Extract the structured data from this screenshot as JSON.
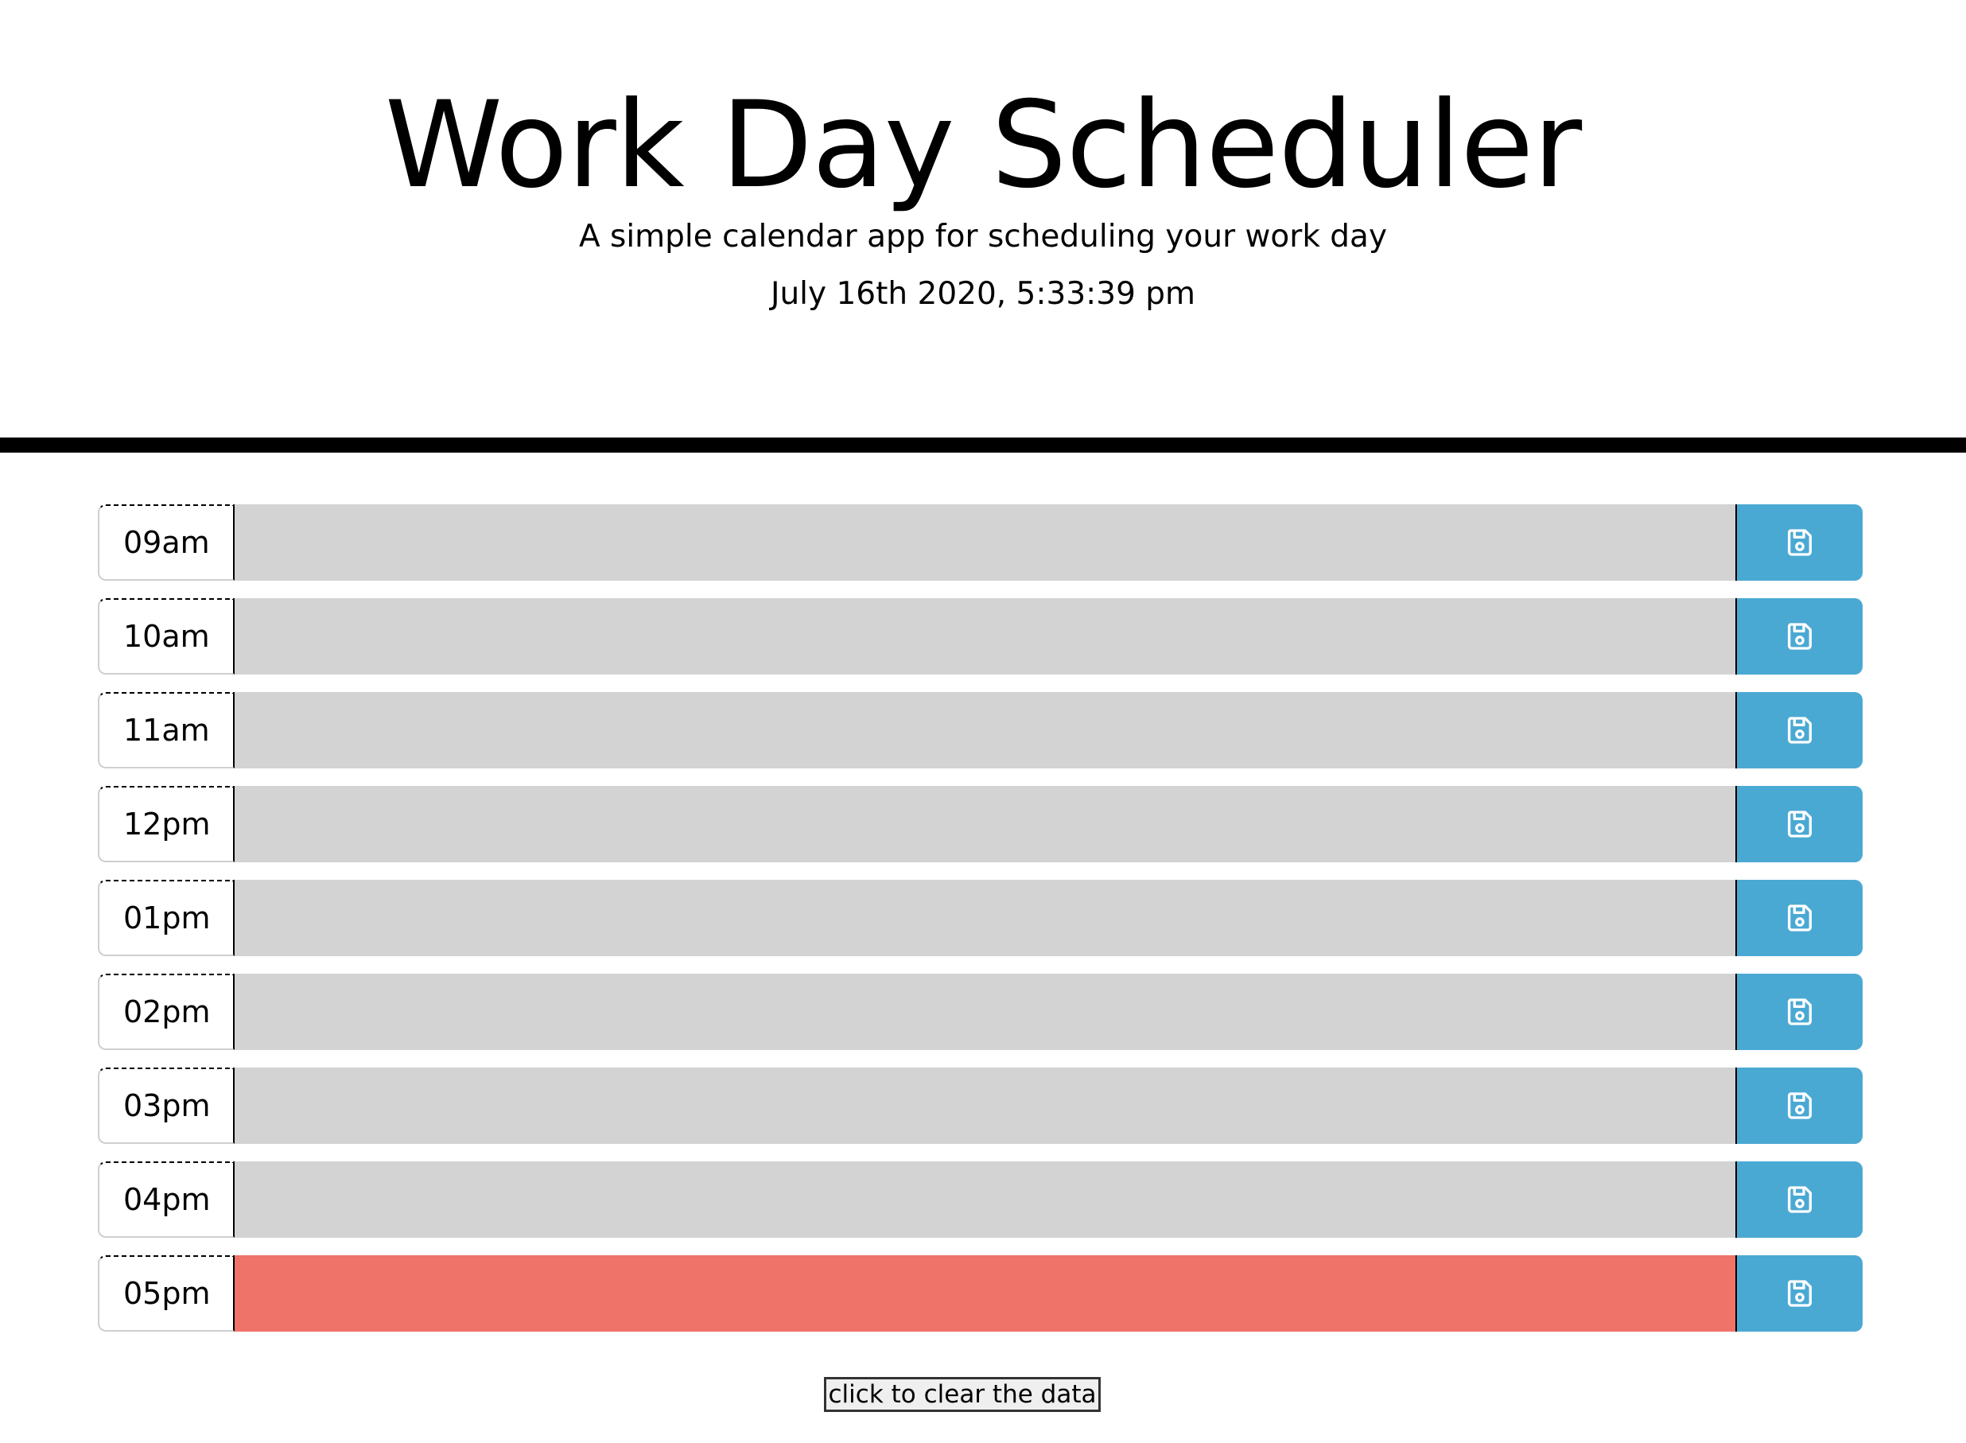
{
  "header": {
    "title": "Work Day Scheduler",
    "lead": "A simple calendar app for scheduling your work day",
    "current_day": "July 16th 2020, 5:33:39 pm"
  },
  "time_blocks": [
    {
      "hour": "09am",
      "description": "",
      "state": "past"
    },
    {
      "hour": "10am",
      "description": "",
      "state": "past"
    },
    {
      "hour": "11am",
      "description": "",
      "state": "past"
    },
    {
      "hour": "12pm",
      "description": "",
      "state": "past"
    },
    {
      "hour": "01pm",
      "description": "",
      "state": "past"
    },
    {
      "hour": "02pm",
      "description": "",
      "state": "past"
    },
    {
      "hour": "03pm",
      "description": "",
      "state": "past"
    },
    {
      "hour": "04pm",
      "description": "",
      "state": "past"
    },
    {
      "hour": "05pm",
      "description": "",
      "state": "present"
    }
  ],
  "save_icon": "save-icon",
  "clear_button_label": "click to clear the data",
  "colors": {
    "past": "#d3d3d3",
    "present": "#ef7369",
    "save_button": "#4aa9d3"
  }
}
